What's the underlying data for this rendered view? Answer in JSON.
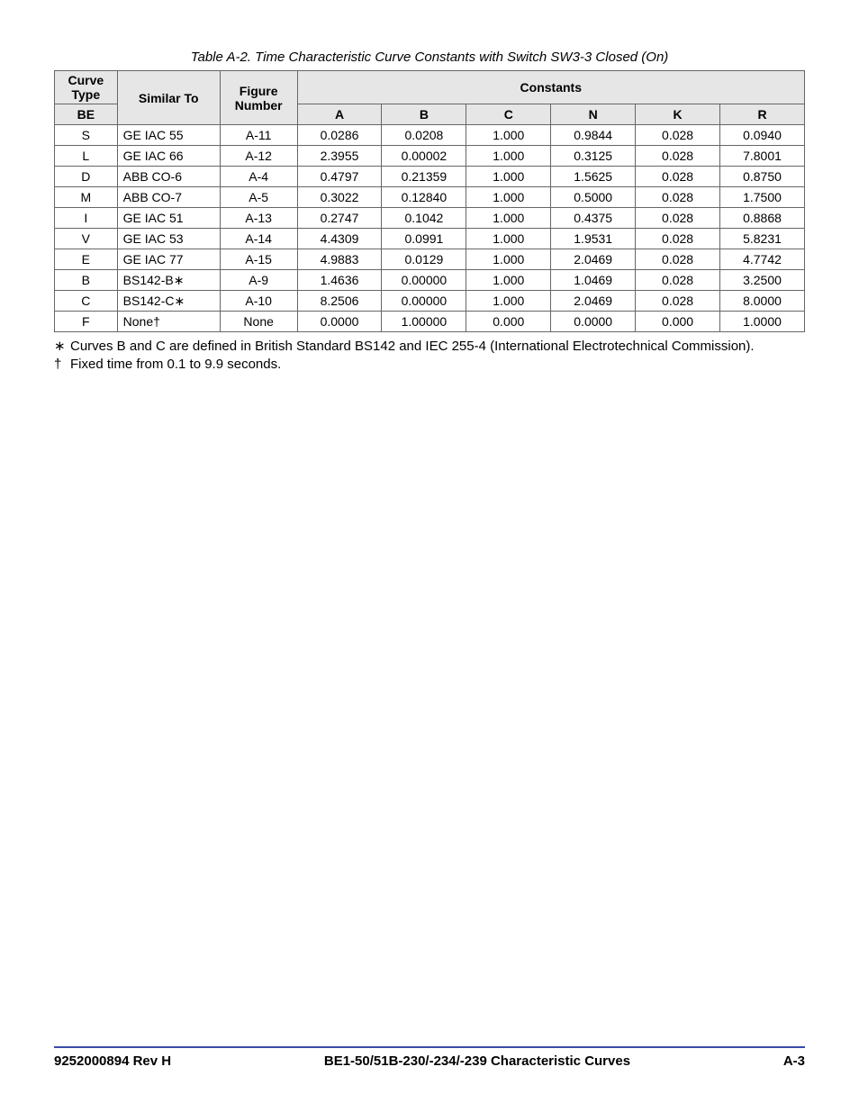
{
  "caption": "Table A-2. Time Characteristic Curve Constants with Switch SW3-3 Closed (On)",
  "table": {
    "headers": {
      "curveType": "Curve Type",
      "be": "BE",
      "similarTo": "Similar To",
      "figureNumber": "Figure Number",
      "constants": "Constants",
      "A": "A",
      "B": "B",
      "C": "C",
      "N": "N",
      "K": "K",
      "R": "R"
    },
    "rows": [
      {
        "be": "S",
        "sim": "GE IAC 55",
        "fig": "A-11",
        "A": "0.0286",
        "B": "0.0208",
        "C": "1.000",
        "N": "0.9844",
        "K": "0.028",
        "R": "0.0940"
      },
      {
        "be": "L",
        "sim": "GE IAC 66",
        "fig": "A-12",
        "A": "2.3955",
        "B": "0.00002",
        "C": "1.000",
        "N": "0.3125",
        "K": "0.028",
        "R": "7.8001"
      },
      {
        "be": "D",
        "sim": "ABB CO-6",
        "fig": "A-4",
        "A": "0.4797",
        "B": "0.21359",
        "C": "1.000",
        "N": "1.5625",
        "K": "0.028",
        "R": "0.8750"
      },
      {
        "be": "M",
        "sim": "ABB CO-7",
        "fig": "A-5",
        "A": "0.3022",
        "B": "0.12840",
        "C": "1.000",
        "N": "0.5000",
        "K": "0.028",
        "R": "1.7500"
      },
      {
        "be": "I",
        "sim": "GE IAC 51",
        "fig": "A-13",
        "A": "0.2747",
        "B": "0.1042",
        "C": "1.000",
        "N": "0.4375",
        "K": "0.028",
        "R": "0.8868"
      },
      {
        "be": "V",
        "sim": "GE IAC 53",
        "fig": "A-14",
        "A": "4.4309",
        "B": "0.0991",
        "C": "1.000",
        "N": "1.9531",
        "K": "0.028",
        "R": "5.8231"
      },
      {
        "be": "E",
        "sim": "GE IAC 77",
        "fig": "A-15",
        "A": "4.9883",
        "B": "0.0129",
        "C": "1.000",
        "N": "2.0469",
        "K": "0.028",
        "R": "4.7742"
      },
      {
        "be": "B",
        "sim": "BS142-B∗",
        "fig": "A-9",
        "A": "1.4636",
        "B": "0.00000",
        "C": "1.000",
        "N": "1.0469",
        "K": "0.028",
        "R": "3.2500"
      },
      {
        "be": "C",
        "sim": "BS142-C∗",
        "fig": "A-10",
        "A": "8.2506",
        "B": "0.00000",
        "C": "1.000",
        "N": "2.0469",
        "K": "0.028",
        "R": "8.0000"
      },
      {
        "be": "F",
        "sim": "None†",
        "fig": "None",
        "A": "0.0000",
        "B": "1.00000",
        "C": "0.000",
        "N": "0.0000",
        "K": "0.000",
        "R": "1.0000"
      }
    ]
  },
  "notes": [
    {
      "sym": "∗",
      "text": "Curves B and C are defined in British Standard BS142 and IEC 255-4 (International Electrotechnical Commission)."
    },
    {
      "sym": "†",
      "text": "Fixed time from 0.1 to 9.9 seconds."
    }
  ],
  "footer": {
    "left": "9252000894 Rev H",
    "center": "BE1-50/51B-230/-234/-239 Characteristic Curves",
    "right": "A-3"
  }
}
